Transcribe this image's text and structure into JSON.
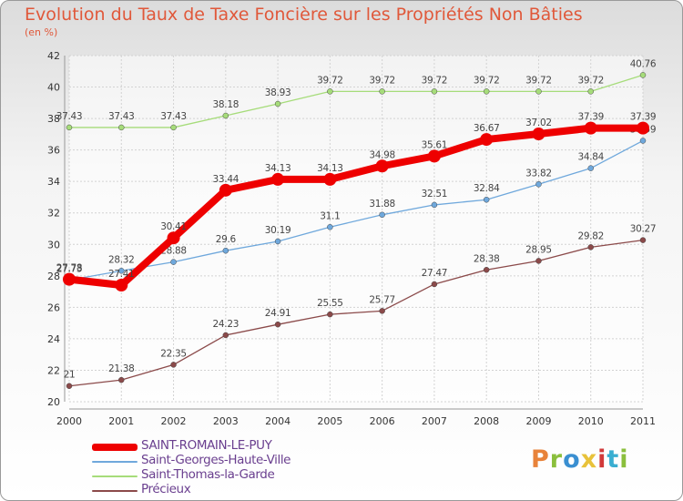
{
  "header": {
    "title": "Evolution du Taux de Taxe Foncière sur les Propriétés Non Bâties",
    "unit": "(en %)"
  },
  "logo": {
    "text": "Proxiti",
    "colors": [
      "#e8833a",
      "#8bbf3d",
      "#3a8fd1",
      "#e8c23a",
      "#d13a3a",
      "#3aaed1",
      "#8bbf3d"
    ]
  },
  "chart_data": {
    "type": "line",
    "x": [
      "2000",
      "2001",
      "2002",
      "2003",
      "2004",
      "2005",
      "2006",
      "2007",
      "2008",
      "2009",
      "2010",
      "2011"
    ],
    "ylim": [
      20,
      42
    ],
    "yticks": [
      20,
      22,
      24,
      26,
      28,
      30,
      32,
      34,
      36,
      38,
      40,
      42
    ],
    "grid": true,
    "legend_position": "bottom-left",
    "series": [
      {
        "name": "SAINT-ROMAIN-LE-PUY",
        "color": "#ee0000",
        "values": [
          27.78,
          27.41,
          30.41,
          33.44,
          34.13,
          34.13,
          34.98,
          35.61,
          36.67,
          37.02,
          37.39,
          37.39
        ],
        "labels": [
          "27.78",
          "27.41",
          "30.41",
          "33.44",
          "34.13",
          "34.13",
          "34.98",
          "35.61",
          "36.67",
          "37.02",
          "37.39",
          "37.39"
        ]
      },
      {
        "name": "Saint-Georges-Haute-Ville",
        "color": "#6fa8dc",
        "values": [
          27.73,
          28.32,
          28.88,
          29.6,
          30.19,
          31.1,
          31.88,
          32.51,
          32.84,
          33.82,
          34.84,
          36.59
        ],
        "labels": [
          "27.73",
          "28.32",
          "28.88",
          "29.6",
          "30.19",
          "31.1",
          "31.88",
          "32.51",
          "32.84",
          "33.82",
          "34.84",
          "36.59"
        ]
      },
      {
        "name": "Saint-Thomas-la-Garde",
        "color": "#a6dc7a",
        "values": [
          37.43,
          37.43,
          37.43,
          38.18,
          38.93,
          39.72,
          39.72,
          39.72,
          39.72,
          39.72,
          39.72,
          40.76
        ],
        "labels": [
          "37.43",
          "37.43",
          "37.43",
          "38.18",
          "38.93",
          "39.72",
          "39.72",
          "39.72",
          "39.72",
          "39.72",
          "39.72",
          "40.76"
        ]
      },
      {
        "name": "Précieux",
        "color": "#8b4a4a",
        "values": [
          21,
          21.38,
          22.35,
          24.23,
          24.91,
          25.55,
          25.77,
          27.47,
          28.38,
          28.95,
          29.82,
          30.27
        ],
        "labels": [
          "21",
          "21.38",
          "22.35",
          "24.23",
          "24.91",
          "25.55",
          "25.77",
          "27.47",
          "28.38",
          "28.95",
          "29.82",
          "30.27"
        ]
      }
    ]
  }
}
